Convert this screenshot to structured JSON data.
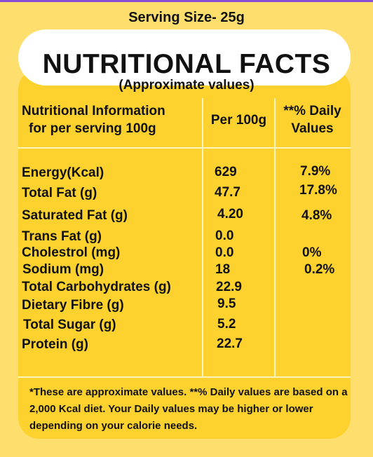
{
  "serving_size": "Serving Size- 25g",
  "title": "NUTRITIONAL FACTS",
  "subtitle": "(Approximate values)",
  "headers": {
    "info_line1": "Nutritional Information",
    "info_line2": "for per serving 100g",
    "per100": "Per 100g",
    "dv_line1": "**% Daily",
    "dv_line2": "Values"
  },
  "rows": [
    {
      "name": "Energy(Kcal)",
      "per100": "629",
      "dv": "7.9%"
    },
    {
      "name": "Total Fat (g)",
      "per100": "47.7",
      "dv": "17.8%"
    },
    {
      "name": "Saturated Fat (g)",
      "per100": "4.20",
      "dv": "4.8%"
    },
    {
      "name": "Trans Fat (g)",
      "per100": "0.0",
      "dv": ""
    },
    {
      "name": "Cholestrol (mg)",
      "per100": "0.0",
      "dv": "0%"
    },
    {
      "name": "Sodium (mg)",
      "per100": "18",
      "dv": "0.2%"
    },
    {
      "name": "Total Carbohydrates (g)",
      "per100": "22.9",
      "dv": ""
    },
    {
      "name": "Dietary Fibre (g)",
      "per100": "9.5",
      "dv": ""
    },
    {
      "name": "Total Sugar (g)",
      "per100": "5.2",
      "dv": ""
    },
    {
      "name": "Protein (g)",
      "per100": "22.7",
      "dv": ""
    }
  ],
  "footnote": "*These are approximate values.  **% Daily values are based on a 2,000 Kcal diet. Your Daily values may be higher or lower depending on your calorie needs.",
  "colors": {
    "background": "#fedf6e",
    "card": "#fdd22e",
    "title_pill": "#ffffff",
    "top_strip": "#8a4fd6"
  }
}
